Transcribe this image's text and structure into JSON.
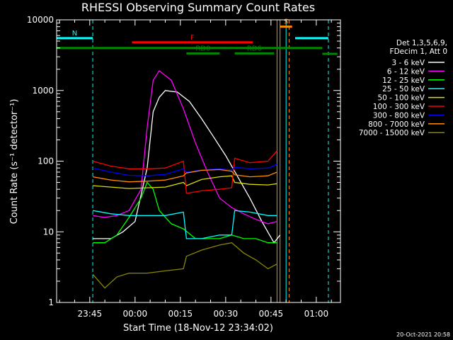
{
  "chart_data": {
    "type": "line",
    "title": "RHESSI Observing Summary Count Rates",
    "ylabel": "Count Rate (s⁻¹ detector⁻¹)",
    "xlabel": "Start Time (18-Nov-12 23:34:02)",
    "y_scale": "log",
    "ylim": [
      1,
      10000
    ],
    "xlim": [
      "23:34:02",
      "01:08:00"
    ],
    "y_ticks": [
      {
        "value": 1,
        "label": "1"
      },
      {
        "value": 10,
        "label": "10"
      },
      {
        "value": 100,
        "label": "100"
      },
      {
        "value": 1000,
        "label": "1000"
      },
      {
        "value": 10000,
        "label": "10000"
      }
    ],
    "x_ticks": [
      {
        "value": "23:45",
        "label": "23:45"
      },
      {
        "value": "00:00",
        "label": "00:00"
      },
      {
        "value": "00:15",
        "label": "00:15"
      },
      {
        "value": "00:30",
        "label": "00:30"
      },
      {
        "value": "00:45",
        "label": "00:45"
      },
      {
        "value": "01:00",
        "label": "01:00"
      }
    ],
    "legend_header": [
      "Det 1,3,5,6,9,",
      "FDecim 1, Att 0"
    ],
    "legend_placement": "right",
    "series": [
      {
        "name": "3 - 6 keV",
        "color": "#ffffff",
        "points": [
          [
            "23:46",
            8
          ],
          [
            "23:52",
            8
          ],
          [
            "23:56",
            10
          ],
          [
            "00:00",
            14
          ],
          [
            "00:04",
            80
          ],
          [
            "00:06",
            500
          ],
          [
            "00:08",
            800
          ],
          [
            "00:10",
            1000
          ],
          [
            "00:14",
            950
          ],
          [
            "00:18",
            700
          ],
          [
            "00:22",
            400
          ],
          [
            "00:26",
            220
          ],
          [
            "00:30",
            120
          ],
          [
            "00:34",
            60
          ],
          [
            "00:38",
            30
          ],
          [
            "00:42",
            14
          ],
          [
            "00:46",
            7
          ],
          [
            "00:48",
            9
          ]
        ]
      },
      {
        "name": "6 - 12 keV",
        "color": "#ff00ff",
        "points": [
          [
            "23:46",
            17
          ],
          [
            "23:50",
            16
          ],
          [
            "23:54",
            17
          ],
          [
            "23:58",
            20
          ],
          [
            "00:02",
            40
          ],
          [
            "00:04",
            300
          ],
          [
            "00:06",
            1400
          ],
          [
            "00:08",
            1900
          ],
          [
            "00:12",
            1400
          ],
          [
            "00:16",
            550
          ],
          [
            "00:20",
            180
          ],
          [
            "00:24",
            70
          ],
          [
            "00:28",
            30
          ],
          [
            "00:32",
            22
          ],
          [
            "00:36",
            18
          ],
          [
            "00:40",
            15
          ],
          [
            "00:44",
            13
          ],
          [
            "00:47",
            14
          ]
        ]
      },
      {
        "name": "12 - 25 keV",
        "color": "#00ff00",
        "points": [
          [
            "23:46",
            7
          ],
          [
            "23:50",
            7
          ],
          [
            "23:54",
            9
          ],
          [
            "23:58",
            16
          ],
          [
            "00:02",
            30
          ],
          [
            "00:04",
            50
          ],
          [
            "00:06",
            40
          ],
          [
            "00:08",
            20
          ],
          [
            "00:12",
            13
          ],
          [
            "00:16",
            11
          ],
          [
            "00:20",
            8
          ],
          [
            "00:24",
            8
          ],
          [
            "00:28",
            8
          ],
          [
            "00:32",
            9
          ],
          [
            "00:36",
            8
          ],
          [
            "00:40",
            8
          ],
          [
            "00:44",
            7
          ],
          [
            "00:47",
            7
          ]
        ]
      },
      {
        "name": "25 - 50 keV",
        "color": "#00ffff",
        "points": [
          [
            "23:46",
            20
          ],
          [
            "23:52",
            18
          ],
          [
            "23:58",
            17
          ],
          [
            "00:04",
            17
          ],
          [
            "00:10",
            17
          ],
          [
            "00:16",
            19
          ],
          [
            "00:17",
            8
          ],
          [
            "00:22",
            8
          ],
          [
            "00:28",
            9
          ],
          [
            "00:32",
            9
          ],
          [
            "00:33",
            20
          ],
          [
            "00:38",
            19
          ],
          [
            "00:44",
            17
          ],
          [
            "00:47",
            17
          ]
        ]
      },
      {
        "name": "50 - 100 keV",
        "color": "#dddd00",
        "points": [
          [
            "23:46",
            45
          ],
          [
            "23:52",
            43
          ],
          [
            "23:58",
            41
          ],
          [
            "00:04",
            42
          ],
          [
            "00:10",
            43
          ],
          [
            "00:16",
            50
          ],
          [
            "00:17",
            45
          ],
          [
            "00:22",
            55
          ],
          [
            "00:28",
            60
          ],
          [
            "00:32",
            62
          ],
          [
            "00:33",
            50
          ],
          [
            "00:38",
            47
          ],
          [
            "00:44",
            46
          ],
          [
            "00:47",
            48
          ]
        ]
      },
      {
        "name": "100 - 300 keV",
        "color": "#ff0000",
        "points": [
          [
            "23:46",
            100
          ],
          [
            "23:52",
            85
          ],
          [
            "23:58",
            78
          ],
          [
            "00:04",
            78
          ],
          [
            "00:10",
            80
          ],
          [
            "00:16",
            100
          ],
          [
            "00:17",
            35
          ],
          [
            "00:22",
            38
          ],
          [
            "00:28",
            40
          ],
          [
            "00:32",
            42
          ],
          [
            "00:33",
            110
          ],
          [
            "00:38",
            95
          ],
          [
            "00:44",
            100
          ],
          [
            "00:47",
            140
          ]
        ]
      },
      {
        "name": "300 - 800 keV",
        "color": "#0000ff",
        "points": [
          [
            "23:46",
            80
          ],
          [
            "23:52",
            70
          ],
          [
            "23:58",
            63
          ],
          [
            "00:04",
            62
          ],
          [
            "00:10",
            65
          ],
          [
            "00:16",
            78
          ],
          [
            "00:17",
            70
          ],
          [
            "00:22",
            75
          ],
          [
            "00:28",
            78
          ],
          [
            "00:32",
            75
          ],
          [
            "00:33",
            82
          ],
          [
            "00:38",
            78
          ],
          [
            "00:44",
            80
          ],
          [
            "00:47",
            90
          ]
        ]
      },
      {
        "name": "800 - 7000 keV",
        "color": "#ff8c00",
        "points": [
          [
            "23:46",
            60
          ],
          [
            "23:52",
            54
          ],
          [
            "23:58",
            51
          ],
          [
            "00:04",
            52
          ],
          [
            "00:10",
            54
          ],
          [
            "00:16",
            62
          ],
          [
            "00:17",
            68
          ],
          [
            "00:22",
            74
          ],
          [
            "00:28",
            76
          ],
          [
            "00:32",
            72
          ],
          [
            "00:33",
            64
          ],
          [
            "00:38",
            60
          ],
          [
            "00:44",
            62
          ],
          [
            "00:47",
            70
          ]
        ]
      },
      {
        "name": "7000 - 15000 keV",
        "color": "#888800",
        "points": [
          [
            "23:46",
            2.5
          ],
          [
            "23:50",
            1.6
          ],
          [
            "23:54",
            2.3
          ],
          [
            "23:58",
            2.6
          ],
          [
            "00:04",
            2.6
          ],
          [
            "00:10",
            2.8
          ],
          [
            "00:16",
            3
          ],
          [
            "00:17",
            4.5
          ],
          [
            "00:22",
            5.5
          ],
          [
            "00:28",
            6.5
          ],
          [
            "00:32",
            7
          ],
          [
            "00:36",
            5
          ],
          [
            "00:40",
            4
          ],
          [
            "00:44",
            3
          ],
          [
            "00:47",
            3.5
          ]
        ]
      }
    ],
    "annotations": [
      {
        "label": "N",
        "color": "#00ffff",
        "level": 5500,
        "start": "23:34:02",
        "end": "23:46"
      },
      {
        "label": "",
        "color": "#00ffff",
        "level": 5500,
        "start": "00:53",
        "end": "01:04"
      },
      {
        "label": "F",
        "color": "#ff0000",
        "level": 4800,
        "start": "23:59",
        "end": "00:39"
      },
      {
        "label": "S",
        "color": "#ff8c00",
        "level": 8000,
        "start": "00:48",
        "end": "00:52"
      },
      {
        "label": "",
        "color": "#008800",
        "level": 4000,
        "start": "23:34:02",
        "end": "01:02"
      },
      {
        "label": "",
        "color": "#008800",
        "level": 3300,
        "start": "01:02",
        "end": "01:07"
      },
      {
        "label": "RD0",
        "color": "#008800",
        "level": 3350,
        "start": "00:17",
        "end": "00:28"
      },
      {
        "label": "RD6",
        "color": "#008800",
        "level": 3350,
        "start": "00:33",
        "end": "00:46"
      }
    ],
    "markers": [
      {
        "time": "23:34:02",
        "color": "#00ffff",
        "style": "solid"
      },
      {
        "time": "23:46",
        "color": "#00ffff",
        "style": "dashed"
      },
      {
        "time": "00:47",
        "color": "#ff8c00",
        "style": "solid"
      },
      {
        "time": "00:48",
        "color": "#ff8c00",
        "style": "solid"
      },
      {
        "time": "00:50",
        "color": "#00ffff",
        "style": "solid"
      },
      {
        "time": "00:51",
        "color": "#ff8c00",
        "style": "dashed"
      },
      {
        "time": "01:04",
        "color": "#00ffff",
        "style": "dashed"
      }
    ]
  },
  "footer": {
    "datestamp": "20-Oct-2021 20:58"
  }
}
